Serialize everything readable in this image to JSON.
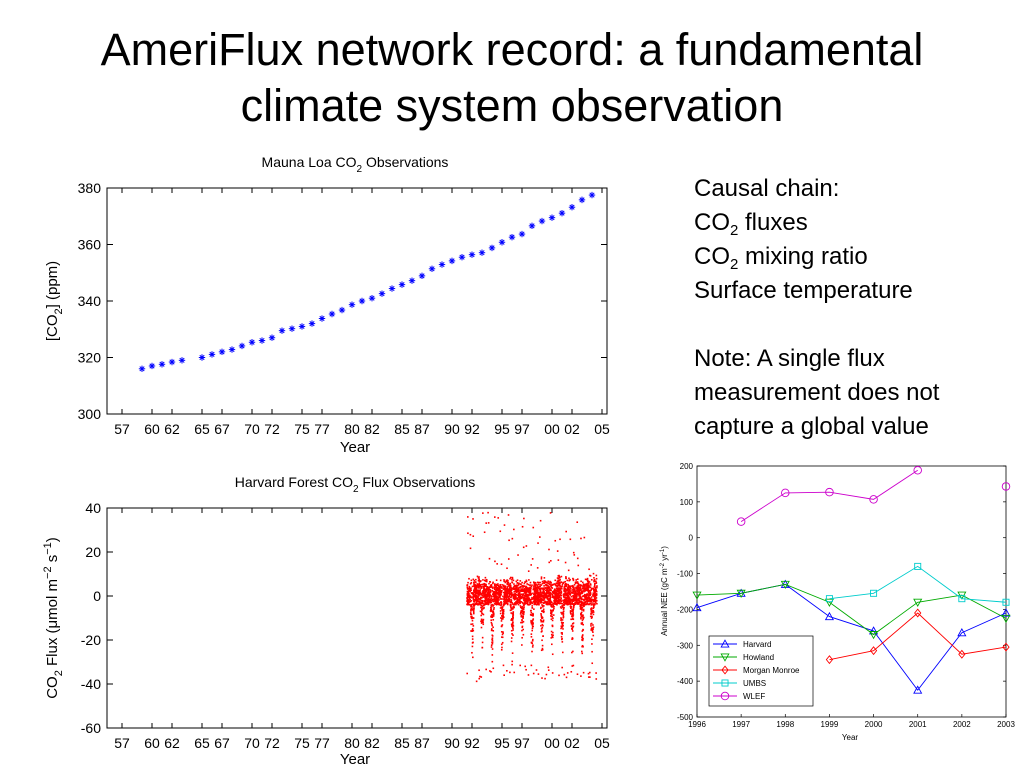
{
  "slide": {
    "title_line1": "AmeriFlux network record: a fundamental",
    "title_line2": "climate system observation"
  },
  "notes": {
    "causal_chain": "Causal chain:",
    "item1_pre": "CO",
    "item1_sub": "2",
    "item1_post": " fluxes",
    "item2_pre": "CO",
    "item2_sub": "2",
    "item2_post": " mixing ratio",
    "item3": "Surface temperature",
    "note_line1": "Note:  A single flux",
    "note_line2": "measurement does not",
    "note_line3": "capture a global value"
  },
  "chart_data": [
    {
      "type": "scatter",
      "title_pre": "Mauna Loa CO",
      "title_sub": "2",
      "title_post": " Observations",
      "xlabel": "Year",
      "ylabel_pre": "[CO",
      "ylabel_sub": "2",
      "ylabel_post": "] (ppm)",
      "ylim": [
        300,
        380
      ],
      "yticks": [
        300,
        320,
        340,
        360,
        380
      ],
      "xlim": [
        1955.5,
        2005.5
      ],
      "xtick_values": [
        1957,
        1960,
        1962,
        1965,
        1967,
        1970,
        1972,
        1975,
        1977,
        1980,
        1982,
        1985,
        1987,
        1990,
        1992,
        1995,
        1997,
        2000,
        2002,
        2005
      ],
      "xtick_labels": [
        "57",
        "60",
        "62",
        "65",
        "67",
        "70",
        "72",
        "75",
        "77",
        "80",
        "82",
        "85",
        "87",
        "90",
        "92",
        "95",
        "97",
        "00",
        "02",
        "05"
      ],
      "color": "#0000ff",
      "marker": "asterisk",
      "x": [
        1959,
        1960,
        1961,
        1962,
        1963,
        1965,
        1966,
        1967,
        1968,
        1969,
        1970,
        1971,
        1972,
        1973,
        1974,
        1975,
        1976,
        1977,
        1978,
        1979,
        1980,
        1981,
        1982,
        1983,
        1984,
        1985,
        1986,
        1987,
        1988,
        1989,
        1990,
        1991,
        1992,
        1993,
        1994,
        1995,
        1996,
        1997,
        1998,
        1999,
        2000,
        2001,
        2002,
        2003,
        2004
      ],
      "y": [
        316,
        317,
        317.6,
        318.4,
        319,
        320,
        321.1,
        322,
        322.8,
        324.1,
        325.4,
        326,
        327,
        329.5,
        330.2,
        331,
        332,
        333.8,
        335.4,
        336.8,
        338.7,
        340,
        341,
        342.6,
        344.4,
        345.8,
        347.2,
        348.9,
        351.4,
        352.9,
        354.2,
        355.5,
        356.4,
        357.1,
        358.8,
        360.8,
        362.6,
        363.7,
        366.6,
        368.3,
        369.5,
        371.1,
        373.2,
        375.8,
        377.5
      ]
    },
    {
      "type": "scatter",
      "title_pre": "Harvard Forest CO",
      "title_sub": "2",
      "title_post": " Flux Observations",
      "xlabel": "Year",
      "ylabel_pre": "CO",
      "ylabel_sub": "2",
      "ylabel_mid": " Flux (",
      "ylabel_mu": "μ",
      "ylabel_unit": "mol m",
      "ylabel_exp1": "−2",
      "ylabel_s": " s",
      "ylabel_exp2": "−1",
      "ylabel_close": ")",
      "ylim": [
        -60,
        40
      ],
      "yticks": [
        -60,
        -40,
        -20,
        0,
        20,
        40
      ],
      "xlim": [
        1955.5,
        2005.5
      ],
      "xtick_values": [
        1957,
        1960,
        1962,
        1965,
        1967,
        1970,
        1972,
        1975,
        1977,
        1980,
        1982,
        1985,
        1987,
        1990,
        1992,
        1995,
        1997,
        2000,
        2002,
        2005
      ],
      "xtick_labels": [
        "57",
        "60",
        "62",
        "65",
        "67",
        "70",
        "72",
        "75",
        "77",
        "80",
        "82",
        "85",
        "87",
        "90",
        "92",
        "95",
        "97",
        "00",
        "02",
        "05"
      ],
      "color": "#ff0000",
      "x_range": [
        1991.5,
        2004.5
      ],
      "summer_minimum": [
        -34,
        -33,
        -32,
        -31,
        -32,
        -31,
        -31,
        -33,
        -32,
        -33,
        -31,
        -33,
        -34
      ],
      "winter_maximum": [
        8,
        9,
        8,
        8,
        9,
        9,
        8,
        9,
        8,
        10,
        9,
        9,
        10
      ]
    },
    {
      "type": "line",
      "xlabel": "Year",
      "ylabel_pre": "Annual NEE (gC m",
      "ylabel_exp": "-2",
      "ylabel_post": " yr",
      "ylabel_exp2": "-1",
      "ylabel_close": ")",
      "xlim": [
        1996,
        2003
      ],
      "ylim": [
        -500,
        200
      ],
      "yticks": [
        -500,
        -400,
        -300,
        -200,
        -100,
        0,
        100,
        200
      ],
      "xticks": [
        1996,
        1997,
        1998,
        1999,
        2000,
        2001,
        2002,
        2003
      ],
      "legend_position": "lower-left",
      "series": [
        {
          "name": "Harvard",
          "color": "#0000ff",
          "marker": "triangle-up",
          "x": [
            1996,
            1997,
            1998,
            1999,
            2000,
            2001,
            2002,
            2003
          ],
          "y": [
            -195,
            -155,
            -130,
            -220,
            -260,
            -425,
            -265,
            -210
          ]
        },
        {
          "name": "Howland",
          "color": "#00aa00",
          "marker": "triangle-down",
          "x": [
            1996,
            1997,
            1998,
            1999,
            2000,
            2001,
            2002,
            2003
          ],
          "y": [
            -160,
            -155,
            -130,
            -180,
            -270,
            -180,
            -160,
            -225
          ]
        },
        {
          "name": "Morgan Monroe",
          "color": "#ff0000",
          "marker": "diamond",
          "x": [
            1999,
            2000,
            2001,
            2002,
            2003
          ],
          "y": [
            -340,
            -315,
            -210,
            -325,
            -305
          ]
        },
        {
          "name": "UMBS",
          "color": "#00cccc",
          "marker": "square",
          "x": [
            1999,
            2000,
            2001,
            2002,
            2003
          ],
          "y": [
            -170,
            -155,
            -80,
            -170,
            -180
          ]
        },
        {
          "name": "WLEF",
          "color": "#cc00cc",
          "marker": "circle",
          "x": [
            1997,
            1998,
            1999,
            2000,
            2001,
            2003
          ],
          "y": [
            45,
            125,
            127,
            107,
            188,
            143
          ],
          "segments": [
            [
              0,
              4
            ]
          ]
        }
      ]
    }
  ]
}
